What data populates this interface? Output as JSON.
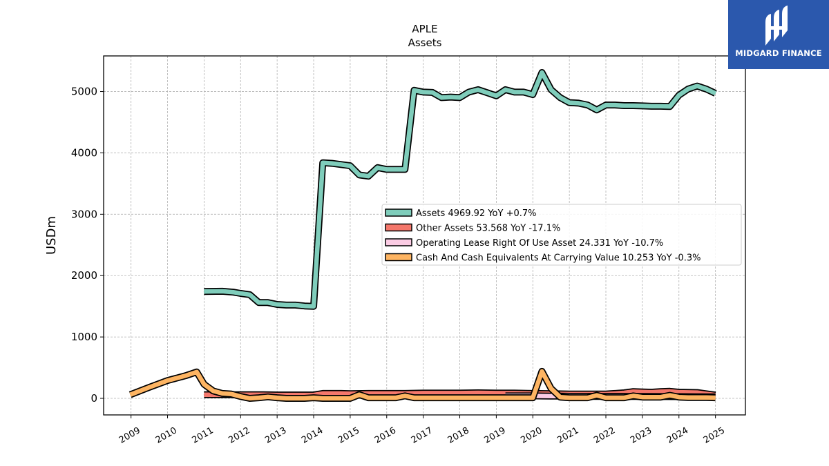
{
  "chart_data": {
    "type": "line",
    "title": "APLE",
    "subtitle": "Assets",
    "xlabel": "",
    "ylabel": "USDm",
    "ylim": [
      -270,
      5580
    ],
    "xlim": [
      2008.25,
      2025.82
    ],
    "yticks": [
      0,
      1000,
      2000,
      3000,
      4000,
      5000
    ],
    "xticks": [
      2009,
      2010,
      2011,
      2012,
      2013,
      2014,
      2015,
      2016,
      2017,
      2018,
      2019,
      2020,
      2021,
      2022,
      2023,
      2024,
      2025
    ],
    "grid": true,
    "legend_position": "center-right",
    "series": [
      {
        "name": "Assets",
        "legend_label": "Assets  4969.92 YoY +0.7%",
        "color": "#7fcdbb",
        "points": [
          [
            2011.0,
            1740
          ],
          [
            2011.5,
            1745
          ],
          [
            2011.8,
            1730
          ],
          [
            2012.0,
            1710
          ],
          [
            2012.25,
            1690
          ],
          [
            2012.5,
            1560
          ],
          [
            2012.75,
            1560
          ],
          [
            2013.0,
            1530
          ],
          [
            2013.25,
            1520
          ],
          [
            2013.5,
            1520
          ],
          [
            2013.75,
            1505
          ],
          [
            2014.0,
            1500
          ],
          [
            2014.25,
            3840
          ],
          [
            2014.5,
            3830
          ],
          [
            2014.75,
            3810
          ],
          [
            2015.0,
            3790
          ],
          [
            2015.25,
            3640
          ],
          [
            2015.5,
            3620
          ],
          [
            2015.75,
            3760
          ],
          [
            2016.0,
            3730
          ],
          [
            2016.25,
            3730
          ],
          [
            2016.5,
            3730
          ],
          [
            2016.75,
            5020
          ],
          [
            2017.0,
            4990
          ],
          [
            2017.25,
            4985
          ],
          [
            2017.5,
            4900
          ],
          [
            2017.75,
            4910
          ],
          [
            2018.0,
            4900
          ],
          [
            2018.25,
            4990
          ],
          [
            2018.5,
            5030
          ],
          [
            2018.75,
            4980
          ],
          [
            2019.0,
            4930
          ],
          [
            2019.25,
            5030
          ],
          [
            2019.5,
            4990
          ],
          [
            2019.75,
            4990
          ],
          [
            2020.0,
            4950
          ],
          [
            2020.25,
            5310
          ],
          [
            2020.5,
            5030
          ],
          [
            2020.75,
            4900
          ],
          [
            2021.0,
            4820
          ],
          [
            2021.25,
            4810
          ],
          [
            2021.5,
            4780
          ],
          [
            2021.75,
            4700
          ],
          [
            2022.0,
            4780
          ],
          [
            2022.25,
            4780
          ],
          [
            2022.5,
            4770
          ],
          [
            2022.75,
            4770
          ],
          [
            2023.0,
            4765
          ],
          [
            2023.25,
            4760
          ],
          [
            2023.5,
            4760
          ],
          [
            2023.75,
            4755
          ],
          [
            2024.0,
            4940
          ],
          [
            2024.25,
            5040
          ],
          [
            2024.5,
            5090
          ],
          [
            2024.75,
            5040
          ],
          [
            2025.0,
            4970
          ]
        ]
      },
      {
        "name": "Other Assets",
        "legend_label": "Other Assets  53.568 YoY -17.1%",
        "color": "#f4776b",
        "points": [
          [
            2011.0,
            60
          ],
          [
            2011.5,
            60
          ],
          [
            2012.0,
            60
          ],
          [
            2012.5,
            60
          ],
          [
            2013.0,
            55
          ],
          [
            2013.5,
            55
          ],
          [
            2014.0,
            55
          ],
          [
            2014.25,
            80
          ],
          [
            2014.75,
            80
          ],
          [
            2015.0,
            75
          ],
          [
            2015.5,
            80
          ],
          [
            2016.0,
            80
          ],
          [
            2016.5,
            80
          ],
          [
            2017.0,
            85
          ],
          [
            2017.5,
            85
          ],
          [
            2018.0,
            85
          ],
          [
            2018.5,
            90
          ],
          [
            2019.0,
            85
          ],
          [
            2019.5,
            85
          ],
          [
            2020.0,
            80
          ],
          [
            2020.5,
            75
          ],
          [
            2021.0,
            70
          ],
          [
            2021.5,
            70
          ],
          [
            2022.0,
            70
          ],
          [
            2022.5,
            90
          ],
          [
            2022.75,
            110
          ],
          [
            2023.0,
            105
          ],
          [
            2023.25,
            100
          ],
          [
            2023.5,
            110
          ],
          [
            2023.75,
            115
          ],
          [
            2024.0,
            100
          ],
          [
            2024.5,
            95
          ],
          [
            2025.0,
            54
          ]
        ]
      },
      {
        "name": "Operating Lease Right Of Use Asset",
        "legend_label": "Operating Lease Right Of Use Asset  24.331 YoY -10.7%",
        "color": "#fbcce4",
        "points": [
          [
            2019.25,
            40
          ],
          [
            2019.5,
            40
          ],
          [
            2020.0,
            40
          ],
          [
            2020.25,
            38
          ],
          [
            2020.5,
            37
          ],
          [
            2020.75,
            36
          ],
          [
            2021.0,
            34
          ],
          [
            2021.5,
            33
          ],
          [
            2022.0,
            32
          ],
          [
            2022.5,
            31
          ],
          [
            2023.0,
            30
          ],
          [
            2023.5,
            29
          ],
          [
            2024.0,
            28
          ],
          [
            2024.5,
            26
          ],
          [
            2025.0,
            24
          ]
        ]
      },
      {
        "name": "Cash And Cash Equivalents At Carrying Value",
        "legend_label": "Cash And Cash Equivalents At Carrying Value  10.253 YoY -0.3%",
        "color": "#fdb462",
        "points": [
          [
            2008.98,
            60
          ],
          [
            2009.5,
            180
          ],
          [
            2010.0,
            290
          ],
          [
            2010.5,
            370
          ],
          [
            2010.8,
            430
          ],
          [
            2011.0,
            230
          ],
          [
            2011.25,
            120
          ],
          [
            2011.5,
            80
          ],
          [
            2011.75,
            70
          ],
          [
            2012.0,
            30
          ],
          [
            2012.25,
            0
          ],
          [
            2012.5,
            10
          ],
          [
            2012.75,
            25
          ],
          [
            2013.0,
            10
          ],
          [
            2013.25,
            0
          ],
          [
            2013.5,
            0
          ],
          [
            2013.75,
            0
          ],
          [
            2014.0,
            10
          ],
          [
            2014.25,
            0
          ],
          [
            2014.5,
            0
          ],
          [
            2014.75,
            0
          ],
          [
            2015.0,
            0
          ],
          [
            2015.25,
            60
          ],
          [
            2015.5,
            10
          ],
          [
            2015.75,
            10
          ],
          [
            2016.0,
            10
          ],
          [
            2016.25,
            10
          ],
          [
            2016.5,
            40
          ],
          [
            2016.75,
            10
          ],
          [
            2017.0,
            10
          ],
          [
            2017.5,
            10
          ],
          [
            2018.0,
            10
          ],
          [
            2018.5,
            10
          ],
          [
            2019.0,
            10
          ],
          [
            2019.5,
            10
          ],
          [
            2020.0,
            10
          ],
          [
            2020.25,
            440
          ],
          [
            2020.5,
            160
          ],
          [
            2020.75,
            20
          ],
          [
            2021.0,
            10
          ],
          [
            2021.25,
            10
          ],
          [
            2021.5,
            10
          ],
          [
            2021.75,
            50
          ],
          [
            2022.0,
            10
          ],
          [
            2022.25,
            10
          ],
          [
            2022.5,
            10
          ],
          [
            2022.75,
            40
          ],
          [
            2023.0,
            20
          ],
          [
            2023.25,
            20
          ],
          [
            2023.5,
            20
          ],
          [
            2023.75,
            50
          ],
          [
            2024.0,
            20
          ],
          [
            2024.25,
            15
          ],
          [
            2024.5,
            15
          ],
          [
            2024.75,
            15
          ],
          [
            2025.0,
            10
          ]
        ]
      }
    ]
  },
  "logo": {
    "text": "MIDGARD FINANCE",
    "icon": "midgard-logo-icon",
    "background": "#2b58ad"
  }
}
